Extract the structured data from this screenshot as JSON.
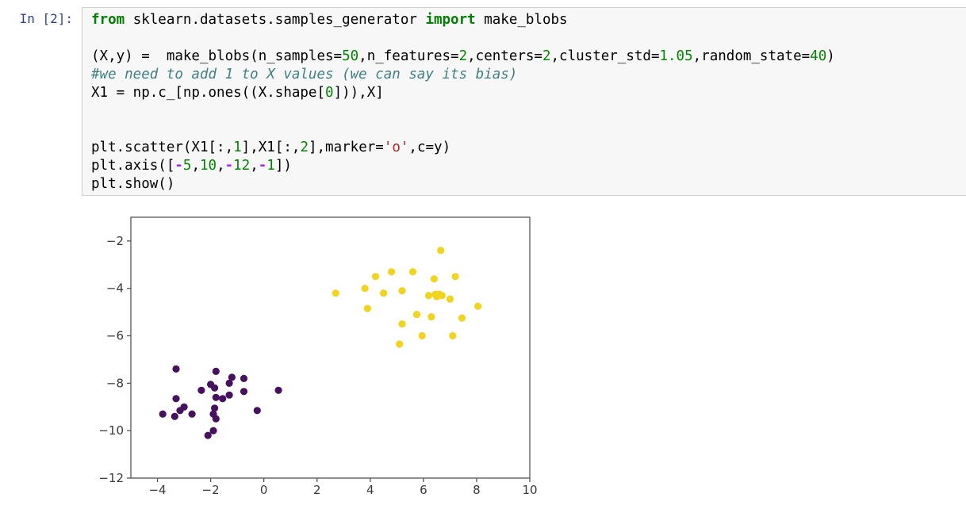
{
  "cell": {
    "prompt": "In [2]:",
    "code_lines": [
      [
        {
          "t": "from",
          "c": "kw"
        },
        {
          "t": " sklearn.datasets.samples_generator ",
          "c": "txt"
        },
        {
          "t": "import",
          "c": "kw"
        },
        {
          "t": " make_blobs",
          "c": "txt"
        }
      ],
      [],
      [
        {
          "t": "(X,y) =  make_blobs(n_samples=",
          "c": "txt"
        },
        {
          "t": "50",
          "c": "num"
        },
        {
          "t": ",n_features=",
          "c": "txt"
        },
        {
          "t": "2",
          "c": "num"
        },
        {
          "t": ",centers=",
          "c": "txt"
        },
        {
          "t": "2",
          "c": "num"
        },
        {
          "t": ",cluster_std=",
          "c": "txt"
        },
        {
          "t": "1.05",
          "c": "num"
        },
        {
          "t": ",random_state=",
          "c": "txt"
        },
        {
          "t": "40",
          "c": "num"
        },
        {
          "t": ")",
          "c": "txt"
        }
      ],
      [
        {
          "t": "#we need to add 1 to X values (we can say its bias)",
          "c": "com"
        }
      ],
      [
        {
          "t": "X1 = np.c_[np.ones((X.shape[",
          "c": "txt"
        },
        {
          "t": "0",
          "c": "num"
        },
        {
          "t": "])),X]",
          "c": "txt"
        }
      ],
      [],
      [],
      [
        {
          "t": "plt.scatter(X1[:,",
          "c": "txt"
        },
        {
          "t": "1",
          "c": "num"
        },
        {
          "t": "],X1[:,",
          "c": "txt"
        },
        {
          "t": "2",
          "c": "num"
        },
        {
          "t": "],marker=",
          "c": "txt"
        },
        {
          "t": "'o'",
          "c": "str"
        },
        {
          "t": ",c=y)",
          "c": "txt"
        }
      ],
      [
        {
          "t": "plt.axis([",
          "c": "txt"
        },
        {
          "t": "-",
          "c": "op"
        },
        {
          "t": "5",
          "c": "num"
        },
        {
          "t": ",",
          "c": "txt"
        },
        {
          "t": "10",
          "c": "num"
        },
        {
          "t": ",",
          "c": "txt"
        },
        {
          "t": "-",
          "c": "op"
        },
        {
          "t": "12",
          "c": "num"
        },
        {
          "t": ",",
          "c": "txt"
        },
        {
          "t": "-",
          "c": "op"
        },
        {
          "t": "1",
          "c": "num"
        },
        {
          "t": "])",
          "c": "txt"
        }
      ],
      [
        {
          "t": "plt.show()",
          "c": "txt"
        }
      ]
    ]
  },
  "chart_data": {
    "type": "scatter",
    "title": "",
    "xlabel": "",
    "ylabel": "",
    "xlim": [
      -5,
      10
    ],
    "ylim": [
      -12,
      -1
    ],
    "xticks": [
      -4,
      -2,
      0,
      2,
      4,
      6,
      8,
      10
    ],
    "yticks": [
      -2,
      -4,
      -6,
      -8,
      -10,
      -12
    ],
    "xtick_labels": [
      "−4",
      "−2",
      "0",
      "2",
      "4",
      "6",
      "8",
      "10"
    ],
    "ytick_labels": [
      "−2",
      "−4",
      "−6",
      "−8",
      "−10",
      "−12"
    ],
    "grid": false,
    "legend": "none",
    "marker": "o",
    "series": [
      {
        "name": "cluster-0-purple",
        "color": "#46115f",
        "points": [
          [
            -3.3,
            -7.4
          ],
          [
            -1.8,
            -7.5
          ],
          [
            -1.2,
            -7.75
          ],
          [
            -0.75,
            -7.8
          ],
          [
            -1.3,
            -8.0
          ],
          [
            -2.0,
            -8.05
          ],
          [
            -2.35,
            -8.3
          ],
          [
            -1.85,
            -8.2
          ],
          [
            -0.75,
            -8.35
          ],
          [
            0.55,
            -8.3
          ],
          [
            -1.8,
            -8.6
          ],
          [
            -1.3,
            -8.5
          ],
          [
            -1.55,
            -8.65
          ],
          [
            -3.3,
            -8.65
          ],
          [
            -3.0,
            -9.0
          ],
          [
            -3.15,
            -9.15
          ],
          [
            -1.85,
            -9.05
          ],
          [
            -0.25,
            -9.15
          ],
          [
            -3.8,
            -9.3
          ],
          [
            -2.7,
            -9.3
          ],
          [
            -3.35,
            -9.4
          ],
          [
            -1.9,
            -9.3
          ],
          [
            -1.8,
            -9.5
          ],
          [
            -1.9,
            -10.0
          ],
          [
            -2.1,
            -10.2
          ]
        ]
      },
      {
        "name": "cluster-1-yellow",
        "color": "#f2d41d",
        "points": [
          [
            6.65,
            -2.4
          ],
          [
            4.8,
            -3.3
          ],
          [
            5.6,
            -3.3
          ],
          [
            4.2,
            -3.5
          ],
          [
            6.4,
            -3.6
          ],
          [
            7.2,
            -3.5
          ],
          [
            3.8,
            -4.0
          ],
          [
            4.5,
            -4.2
          ],
          [
            5.2,
            -4.1
          ],
          [
            2.7,
            -4.2
          ],
          [
            6.2,
            -4.3
          ],
          [
            6.45,
            -4.25
          ],
          [
            6.7,
            -4.3
          ],
          [
            6.5,
            -4.35
          ],
          [
            6.6,
            -4.25
          ],
          [
            7.0,
            -4.45
          ],
          [
            8.05,
            -4.75
          ],
          [
            3.9,
            -4.85
          ],
          [
            5.75,
            -5.1
          ],
          [
            6.3,
            -5.2
          ],
          [
            5.2,
            -5.5
          ],
          [
            7.45,
            -5.25
          ],
          [
            5.95,
            -6.0
          ],
          [
            7.1,
            -6.0
          ],
          [
            5.1,
            -6.35
          ]
        ]
      }
    ],
    "frame_color": "#555555",
    "tick_label_color": "#3a3a3a"
  }
}
